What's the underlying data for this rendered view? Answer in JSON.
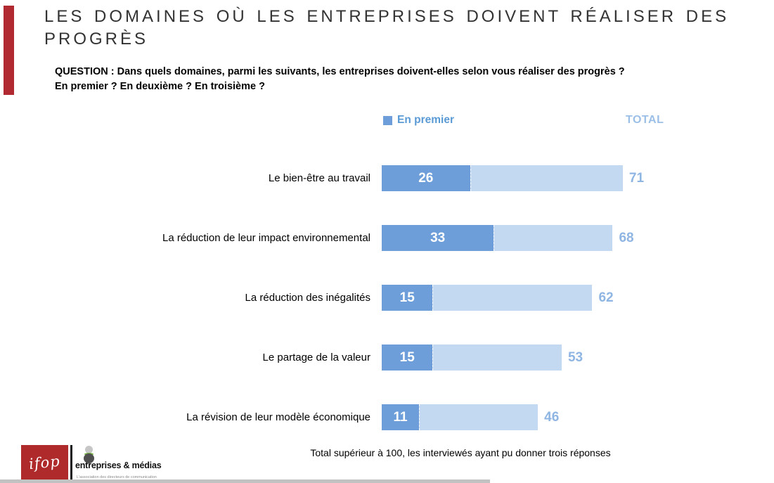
{
  "header": {
    "title": "LES DOMAINES OÙ LES ENTREPRISES DOIVENT RÉALISER DES PROGRÈS",
    "question": "QUESTION : Dans quels domaines, parmi les suivants, les entreprises doivent-elles selon vous réaliser des progrès ?\nEn premier ? En deuxième ? En troisième ?"
  },
  "legend": {
    "en_premier": "En premier",
    "total": "TOTAL"
  },
  "colors": {
    "accent_red": "#B12A31",
    "bar_dark_blue": "#6D9ED9",
    "bar_light_blue": "#C3D8F1",
    "total_text_blue": "#8FB5E3",
    "legend_text_blue": "#5B9BD5"
  },
  "chart_data": {
    "type": "bar",
    "orientation": "horizontal",
    "title": "LES DOMAINES OÙ LES ENTREPRISES DOIVENT RÉALISER DES PROGRÈS",
    "categories": [
      "Le bien-être au travail",
      "La réduction de leur impact environnemental",
      "La réduction des inégalités",
      "Le partage de la valeur",
      "La révision de leur modèle économique"
    ],
    "series": [
      {
        "name": "En premier",
        "values": [
          26,
          33,
          15,
          15,
          11
        ]
      },
      {
        "name": "TOTAL",
        "values": [
          71,
          68,
          62,
          53,
          46
        ]
      }
    ],
    "xlim": [
      0,
      100
    ],
    "grid": false,
    "axes_hidden": true,
    "value_labels": "inside dark segment (white) and right of bar (light blue)",
    "legend_position": "top"
  },
  "footnote": "Total supérieur à 100, les interviewés ayant pu donner trois réponses",
  "logos": {
    "ifop": "ifop",
    "em_name": "entreprises & médias",
    "em_tagline": "L'association des directeurs de communication"
  }
}
